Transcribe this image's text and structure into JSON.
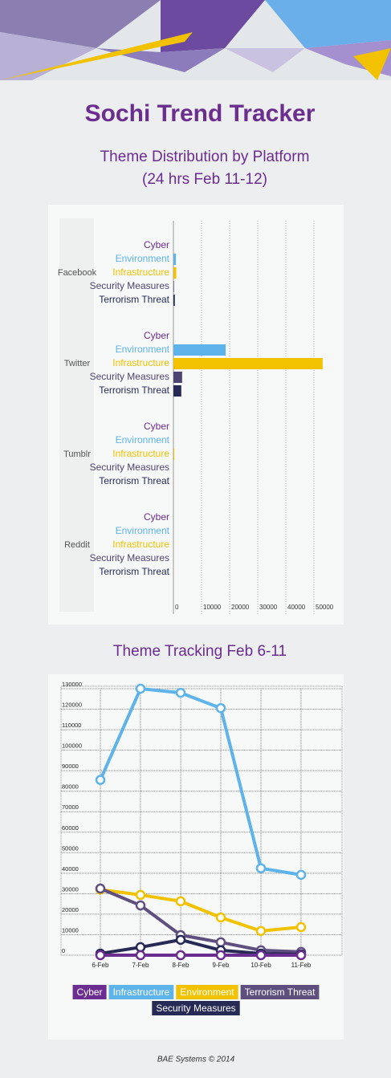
{
  "header": {
    "title": "Sochi Trend Tracker"
  },
  "chart_data": [
    {
      "type": "hbar",
      "title": "Theme Distribution by Platform",
      "subtitle": "(24 hrs Feb 11-12)",
      "categories": [
        "Facebook",
        "Twitter",
        "Tumblr",
        "Reddit"
      ],
      "series": [
        {
          "name": "Cyber",
          "color": "#6b2d8f",
          "values": [
            0,
            0,
            0,
            0
          ]
        },
        {
          "name": "Environment",
          "color": "#5db3ea",
          "values": [
            900,
            18600,
            0,
            0
          ]
        },
        {
          "name": "Infrastructure",
          "color": "#f2c200",
          "values": [
            1000,
            53100,
            300,
            0
          ]
        },
        {
          "name": "Security Measures",
          "color": "#4e4470",
          "values": [
            200,
            3100,
            0,
            0
          ]
        },
        {
          "name": "Terrorism Threat",
          "color": "#262a55",
          "values": [
            500,
            2800,
            0,
            0
          ]
        }
      ],
      "xlim": [
        0,
        60000
      ],
      "xticks": [
        0,
        10000,
        20000,
        30000,
        40000,
        50000
      ],
      "grid": true
    },
    {
      "type": "line",
      "title": "Theme Tracking Feb 6-11",
      "categories": [
        "6-Feb",
        "7-Feb",
        "8-Feb",
        "9-Feb",
        "10-Feb",
        "11-Feb"
      ],
      "series": [
        {
          "name": "Cyber",
          "color": "#6b2d8f",
          "values": [
            0,
            0,
            0,
            0,
            0,
            0
          ]
        },
        {
          "name": "Infrastructure",
          "color": "#5db3ea",
          "values": [
            85500,
            130000,
            128000,
            120500,
            42400,
            39200
          ]
        },
        {
          "name": "Environment",
          "color": "#f2c200",
          "values": [
            32000,
            29400,
            26300,
            18400,
            11800,
            13700
          ]
        },
        {
          "name": "Terrorism Threat",
          "color": "#5e4f7f",
          "values": [
            32500,
            24300,
            9800,
            6300,
            2400,
            1600
          ]
        },
        {
          "name": "Security Measures",
          "color": "#262a55",
          "values": [
            800,
            3900,
            7500,
            2400,
            800,
            400
          ]
        }
      ],
      "ylim": [
        0,
        130000
      ],
      "yticks": [
        0,
        10000,
        20000,
        30000,
        40000,
        50000,
        60000,
        70000,
        80000,
        90000,
        100000,
        110000,
        120000,
        130000
      ],
      "grid": true,
      "legend": "bottom"
    }
  ],
  "footer": {
    "text": "BAE Systems © 2014"
  }
}
